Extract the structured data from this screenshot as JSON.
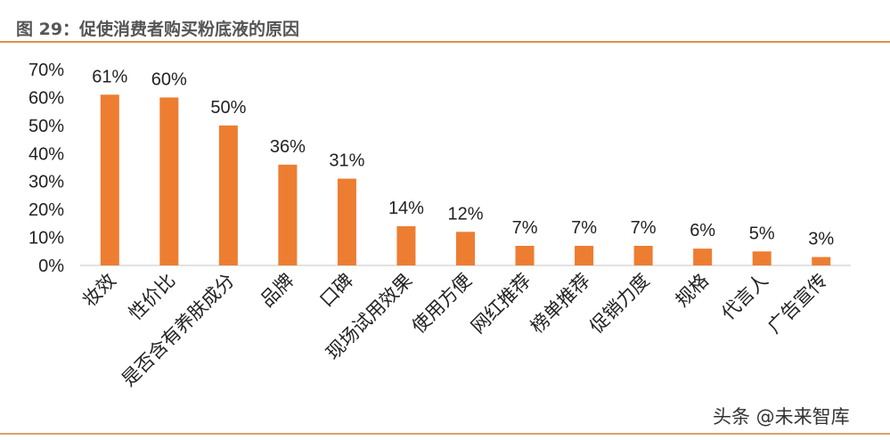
{
  "title": "图 29：促使消费者购买粉底液的原因",
  "watermark": "头条 @未来智库",
  "chart_data": {
    "type": "bar",
    "title": "图 29：促使消费者购买粉底液的原因",
    "categories": [
      "妆效",
      "性价比",
      "是否含有养肤成分",
      "品牌",
      "口碑",
      "现场试用效果",
      "使用方便",
      "网红推荐",
      "榜单推荐",
      "促销力度",
      "规格",
      "代言人",
      "广告宣传"
    ],
    "values": [
      61,
      60,
      50,
      36,
      31,
      14,
      12,
      7,
      7,
      7,
      6,
      5,
      3
    ],
    "data_labels": [
      "61%",
      "60%",
      "50%",
      "36%",
      "31%",
      "14%",
      "12%",
      "7%",
      "7%",
      "7%",
      "6%",
      "5%",
      "3%"
    ],
    "yticks": [
      "0%",
      "10%",
      "20%",
      "30%",
      "40%",
      "50%",
      "60%",
      "70%"
    ],
    "ylim": [
      0,
      70
    ],
    "xlabel": "",
    "ylabel": "",
    "grid": false,
    "bar_color": "#ed7d31"
  }
}
